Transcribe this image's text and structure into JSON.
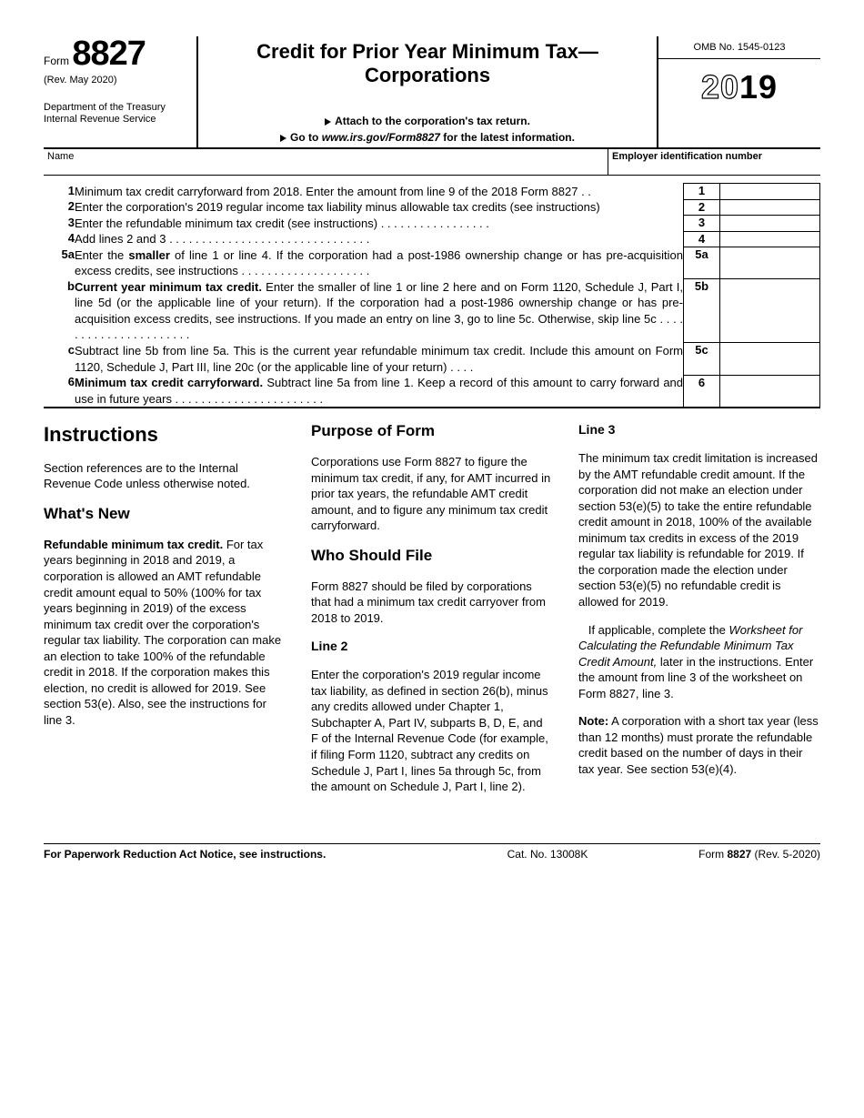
{
  "header": {
    "form_word": "Form",
    "form_number": "8827",
    "revision": "(Rev. May 2020)",
    "dept1": "Department of the Treasury",
    "dept2": "Internal Revenue Service",
    "title": "Credit for Prior Year Minimum Tax—Corporations",
    "attach": "Attach to the corporation's tax return.",
    "goto_prefix": "Go to ",
    "goto_url": "www.irs.gov/Form8827",
    "goto_suffix": " for the latest information.",
    "omb": "OMB No. 1545-0123",
    "year_outline": "20",
    "year_solid": "19"
  },
  "name_row": {
    "name_label": "Name",
    "ein_label": "Employer identification number"
  },
  "lines": {
    "r1": {
      "num": "1",
      "text": "Minimum tax credit carryforward from 2018. Enter the amount from line 9 of the 2018 Form 8827  .    .",
      "box": "1"
    },
    "r2": {
      "num": "2",
      "text": "Enter the corporation's 2019 regular income tax liability minus allowable tax credits (see instructions)",
      "box": "2"
    },
    "r3": {
      "num": "3",
      "text": "Enter the refundable minimum tax credit (see instructions)  .     .     .     .     .     .     .     .     .     .     .     .     .     .     .     .     .",
      "box": "3"
    },
    "r4": {
      "num": "4",
      "text": "Add lines 2 and 3    .     .     .     .     .     .     .     .     .     .     .     .     .     .     .     .     .     .     .     .     .     .     .     .     .     .     .     .     .     .     .",
      "box": "4"
    },
    "r5a": {
      "num": "5a",
      "text_pre": "Enter the ",
      "text_bold": "smaller",
      "text_post": " of line 1 or line 4. If the corporation had a post-1986 ownership change or has pre-acquisition excess credits, see instructions    .     .     .     .     .     .     .     .     .     .     .     .     .     .     .     .     .     .     .     .",
      "box": "5a"
    },
    "r5b": {
      "num": "b",
      "text_bold": "Current year minimum tax credit.",
      "text_post": " Enter the smaller of line 1 or line 2 here and on Form 1120, Schedule J, Part I, line 5d (or the applicable line of your return). If the corporation had a post-1986 ownership change or has pre-acquisition excess credits, see instructions. If you made an entry on line 3, go to line 5c. Otherwise, skip line 5c   .     .     .     .     .     .     .     .     .     .     .     .     .     .     .     .     .     .     .     .     .     .",
      "box": "5b"
    },
    "r5c": {
      "num": "c",
      "text": "Subtract line 5b from line 5a. This is the current year refundable minimum tax credit. Include this amount on Form 1120, Schedule J, Part III, line 20c (or the applicable line of your return)     .     .     .     .",
      "box": "5c"
    },
    "r6": {
      "num": "6",
      "text_bold": "Minimum tax credit carryforward.",
      "text_post": " Subtract line 5a from line 1. Keep a record of this amount to carry forward and use in future years     .     .     .     .     .     .     .     .     .     .     .     .     .     .     .     .     .     .     .     .     .     .     .",
      "box": "6"
    }
  },
  "instructions": {
    "col1": {
      "h1": "Instructions",
      "p1": "Section references are to the Internal Revenue Code unless otherwise noted.",
      "h2": "What's New",
      "p2_bold": "Refundable minimum tax credit.",
      "p2": " For tax years beginning in 2018 and 2019, a corporation is allowed an AMT refundable credit amount equal to 50% (100% for tax years beginning in 2019) of the excess minimum tax credit over the corporation's regular tax liability. The corporation can make an election to take 100% of the refundable credit in 2018. If the corporation makes this election, no credit is allowed for 2019. See section 53(e). Also, see the instructions for line 3."
    },
    "col2": {
      "h2a": "Purpose of Form",
      "p1": "Corporations use Form 8827 to figure the minimum tax credit, if any, for AMT incurred in prior tax years, the refundable AMT credit amount, and to figure any minimum tax credit carryforward.",
      "h2b": "Who Should File",
      "p2": "Form 8827 should be filed by corporations that had a minimum tax credit carryover from 2018 to 2019.",
      "h3": "Line 2",
      "p3": "Enter the corporation's 2019 regular income tax liability, as defined in section 26(b), minus any credits allowed under Chapter 1, Subchapter A, Part IV, subparts B, D, E, and F of the Internal Revenue Code (for example, if filing Form 1120, subtract any credits on Schedule J, Part I, lines 5a through 5c, from the amount on Schedule J, Part I, line 2)."
    },
    "col3": {
      "h3a": "Line 3",
      "p1": "The minimum tax credit limitation is increased by the AMT refundable credit amount. If the corporation did not make an election under section 53(e)(5) to take the entire refundable credit amount in 2018, 100% of the available minimum tax credits in excess of the 2019 regular tax liability is refundable for 2019. If the corporation made the election under section 53(e)(5) no refundable credit is allowed for 2019.",
      "p2_pre": "If applicable, complete the ",
      "p2_ital": "Worksheet for Calculating the Refundable Minimum Tax Credit Amount,",
      "p2_post": " later in the instructions. Enter the amount from line 3 of the worksheet on Form 8827, line 3.",
      "p3_bold": "Note:",
      "p3": " A corporation with a short tax year (less than 12 months) must prorate the refundable credit based on the number of days in their tax year. See section 53(e)(4)."
    }
  },
  "footer": {
    "left": "For Paperwork Reduction Act Notice, see instructions.",
    "mid": "Cat. No. 13008K",
    "right_pre": "Form ",
    "right_bold": "8827",
    "right_post": " (Rev. 5-2020)"
  }
}
